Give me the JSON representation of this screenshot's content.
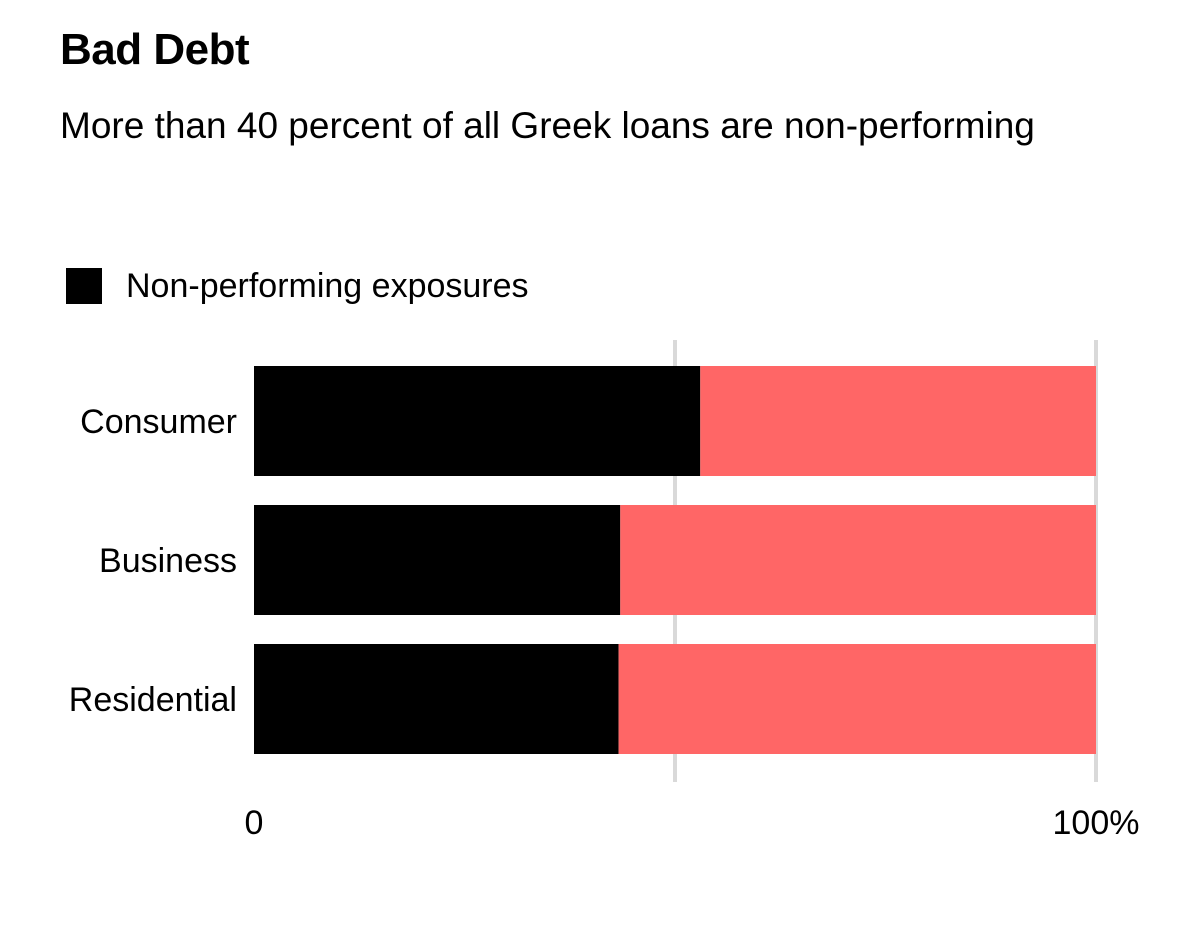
{
  "chart_data": {
    "type": "bar",
    "orientation": "horizontal",
    "stacked": true,
    "title": "Bad Debt",
    "subtitle": "More than 40 percent of all Greek loans are non-performing",
    "categories": [
      "Consumer",
      "Business",
      "Residential"
    ],
    "series": [
      {
        "name": "Non-performing exposures",
        "values": [
          53,
          43.5,
          43.3
        ],
        "color": "#000000"
      },
      {
        "values": [
          47,
          56.5,
          56.7
        ],
        "color": "#ff6666"
      }
    ],
    "xlim": [
      0,
      100
    ],
    "x_ticks": [
      "0",
      "100%"
    ],
    "gridlines_at": [
      50,
      100
    ],
    "grid_color": "#d9d9d9",
    "legend_position": "top-left"
  }
}
